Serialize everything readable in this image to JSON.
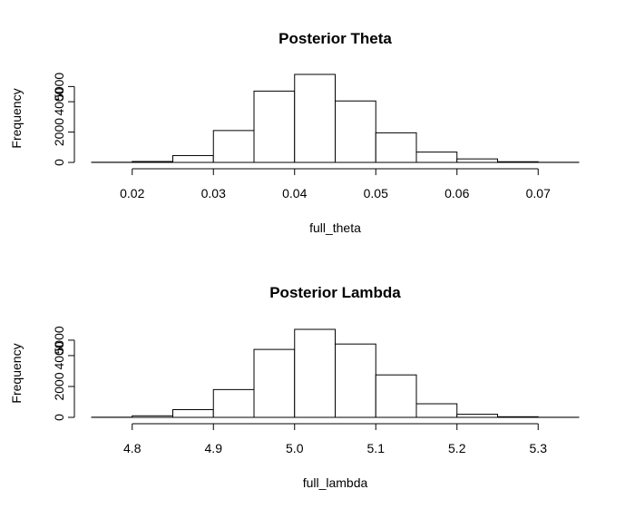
{
  "chart_data": [
    {
      "type": "bar",
      "title": "Posterior Theta",
      "xlabel": "full_theta",
      "ylabel": "Frequency",
      "bin_edges": [
        0.015,
        0.02,
        0.025,
        0.03,
        0.035,
        0.04,
        0.045,
        0.05,
        0.055,
        0.06,
        0.065,
        0.07,
        0.075
      ],
      "values": [
        10,
        60,
        450,
        2100,
        4700,
        5800,
        4050,
        1950,
        680,
        230,
        45,
        8
      ],
      "xticks": [
        0.02,
        0.03,
        0.04,
        0.05,
        0.06,
        0.07
      ],
      "xtick_labels": [
        "0.02",
        "0.03",
        "0.04",
        "0.05",
        "0.06",
        "0.07"
      ],
      "yticks": [
        0,
        2000,
        4000,
        5000
      ],
      "ytick_labels": [
        "0",
        "2000",
        "4000",
        "5000"
      ],
      "ylim": [
        0,
        5800
      ],
      "xlim": [
        0.015,
        0.075
      ]
    },
    {
      "type": "bar",
      "title": "Posterior Lambda",
      "xlabel": "full_lambda",
      "ylabel": "Frequency",
      "bin_edges": [
        4.75,
        4.8,
        4.85,
        4.9,
        4.95,
        5.0,
        5.05,
        5.1,
        5.15,
        5.2,
        5.25,
        5.3,
        5.35
      ],
      "values": [
        10,
        100,
        500,
        1800,
        4400,
        5700,
        4750,
        2750,
        880,
        200,
        40,
        5
      ],
      "xticks": [
        4.8,
        4.9,
        5.0,
        5.1,
        5.2,
        5.3
      ],
      "xtick_labels": [
        "4.8",
        "4.9",
        "5.0",
        "5.1",
        "5.2",
        "5.3"
      ],
      "yticks": [
        0,
        2000,
        4000,
        5000
      ],
      "ytick_labels": [
        "0",
        "2000",
        "4000",
        "5000"
      ],
      "ylim": [
        0,
        5700
      ],
      "xlim": [
        4.75,
        5.35
      ]
    }
  ]
}
